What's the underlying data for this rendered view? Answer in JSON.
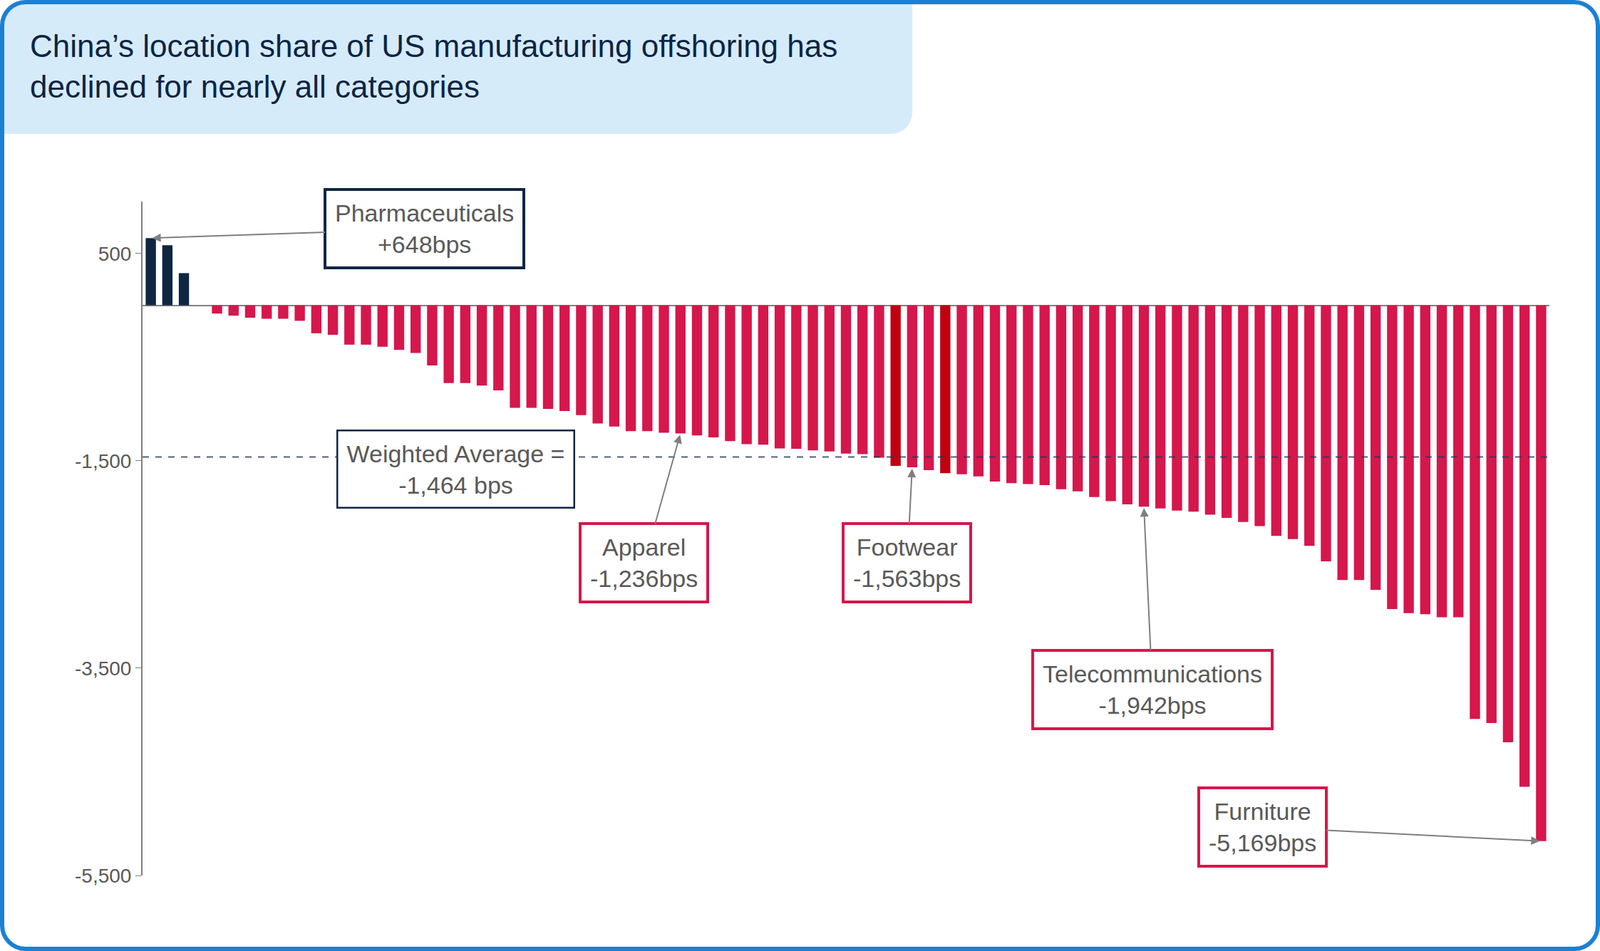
{
  "chart_data": {
    "type": "bar",
    "title": "China’s location share of US manufacturing offshoring has declined for nearly all categories",
    "categories": [
      null,
      null,
      null,
      null,
      null,
      null,
      null,
      null,
      null,
      null,
      null,
      null,
      null,
      null,
      null,
      null,
      null,
      null,
      null,
      null,
      null,
      null,
      null,
      null,
      null,
      null,
      null,
      null,
      null,
      null,
      null,
      null,
      null,
      null,
      null,
      null,
      null,
      null,
      null,
      null,
      null,
      null,
      null,
      null,
      null,
      null,
      null,
      null,
      null,
      null,
      null,
      null,
      null,
      null,
      null,
      null,
      null,
      null,
      null,
      null,
      null,
      null,
      null,
      null,
      null,
      null,
      null,
      null,
      null,
      null,
      null,
      null,
      null,
      null,
      null,
      null,
      null,
      null,
      null,
      null,
      null,
      null,
      null,
      null,
      null
    ],
    "values": [
      648,
      580,
      310,
      0,
      -80,
      -100,
      -120,
      -130,
      -130,
      -150,
      -270,
      -285,
      -380,
      -380,
      -400,
      -430,
      -460,
      -580,
      -750,
      -750,
      -775,
      -820,
      -990,
      -990,
      -1000,
      -1020,
      -1060,
      -1140,
      -1170,
      -1215,
      -1215,
      -1230,
      -1236,
      -1255,
      -1275,
      -1310,
      -1340,
      -1345,
      -1380,
      -1385,
      -1400,
      -1410,
      -1430,
      -1435,
      -1470,
      -1550,
      -1563,
      -1590,
      -1620,
      -1630,
      -1650,
      -1700,
      -1715,
      -1725,
      -1735,
      -1775,
      -1795,
      -1850,
      -1890,
      -1920,
      -1942,
      -1960,
      -1980,
      -1990,
      -2020,
      -2050,
      -2090,
      -2130,
      -2225,
      -2255,
      -2320,
      -2470,
      -2650,
      -2650,
      -2745,
      -2930,
      -2970,
      -2980,
      -3010,
      -3010,
      -3990,
      -4030,
      -4215,
      -4645,
      -5169
    ],
    "colors": [
      "#0f2643",
      "#0f2643",
      "#0f2643",
      "#0f2643",
      "#d5174c",
      "#d5174c",
      "#d5174c",
      "#d5174c",
      "#d5174c",
      "#d5174c",
      "#d5174c",
      "#d5174c",
      "#d5174c",
      "#d5174c",
      "#d5174c",
      "#d5174c",
      "#d5174c",
      "#d5174c",
      "#d5174c",
      "#d5174c",
      "#d5174c",
      "#d5174c",
      "#d5174c",
      "#d5174c",
      "#d5174c",
      "#d5174c",
      "#d5174c",
      "#d5174c",
      "#d5174c",
      "#d5174c",
      "#d5174c",
      "#d5174c",
      "#d5174c",
      "#d5174c",
      "#d5174c",
      "#d5174c",
      "#d5174c",
      "#d5174c",
      "#d5174c",
      "#d5174c",
      "#d5174c",
      "#d5174c",
      "#d5174c",
      "#d5174c",
      "#d5174c",
      "#c00010",
      "#d5174c",
      "#d5174c",
      "#c00010",
      "#d5174c",
      "#d5174c",
      "#d5174c",
      "#d5174c",
      "#d5174c",
      "#d5174c",
      "#d5174c",
      "#d5174c",
      "#d5174c",
      "#d5174c",
      "#d5174c",
      "#d5174c",
      "#d5174c",
      "#d5174c",
      "#d5174c",
      "#d5174c",
      "#d5174c",
      "#d5174c",
      "#d5174c",
      "#d5174c",
      "#d5174c",
      "#d5174c",
      "#d5174c",
      "#d5174c",
      "#d5174c",
      "#d5174c",
      "#d5174c",
      "#d5174c",
      "#d5174c",
      "#d5174c",
      "#d5174c",
      "#d5174c",
      "#d5174c",
      "#d5174c",
      "#d5174c",
      "#d5174c"
    ],
    "ylim": [
      -5500,
      1000
    ],
    "yticks": [
      500,
      {
        "value": -1500,
        "label": "-1,500"
      },
      {
        "value": -3500,
        "label": "-3,500"
      },
      {
        "value": -5500,
        "label": "-5,500"
      }
    ],
    "grid": false,
    "tick_labels": "y",
    "annotations": [
      {
        "text": [
          "Pharmaceuticals",
          "+648bps"
        ],
        "value": 648
      },
      {
        "text": [
          "Apparel",
          "-1,236bps"
        ],
        "value": -1236
      },
      {
        "text": [
          "Footwear",
          "-1,563bps"
        ],
        "value": -1563
      },
      {
        "text": [
          "Telecommunications",
          "-1,942bps"
        ],
        "value": -1942
      },
      {
        "text": [
          "Furniture",
          "-5,169bps"
        ],
        "value": -5169
      }
    ],
    "reference_lines": [
      {
        "text": [
          "Weighted Average =",
          "-1,464 bps"
        ],
        "value": -1464
      }
    ]
  }
}
